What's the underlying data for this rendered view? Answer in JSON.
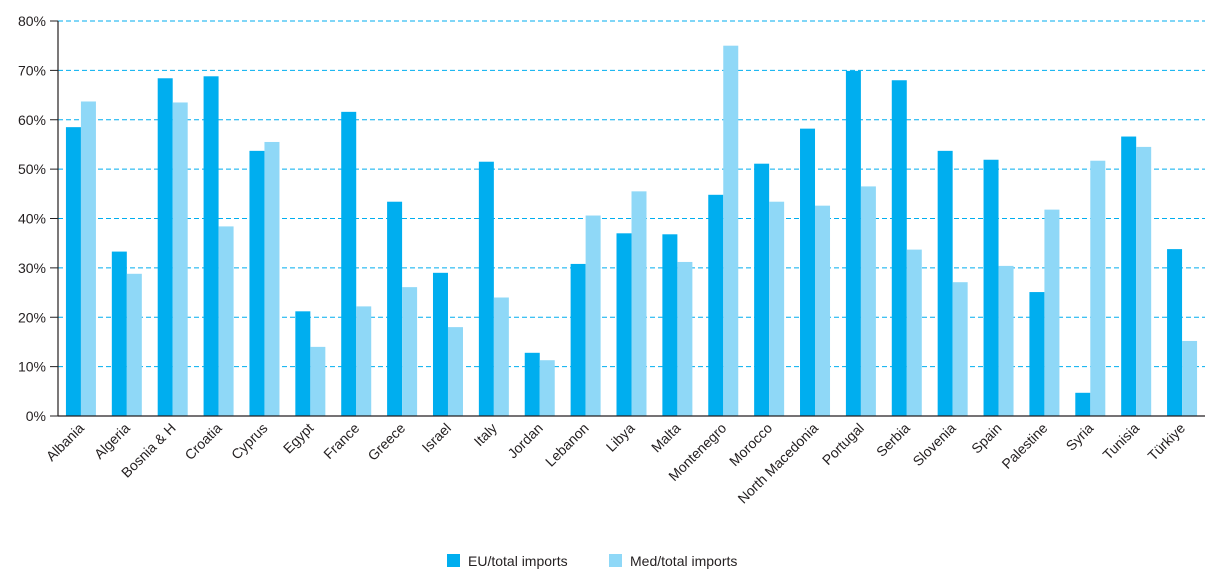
{
  "chart_data": {
    "type": "bar",
    "title": "",
    "xlabel": "",
    "ylabel": "",
    "ylim": [
      0,
      80
    ],
    "y_tick_values": [
      0,
      10,
      20,
      30,
      40,
      50,
      60,
      70,
      80
    ],
    "y_tick_labels": [
      "0%",
      "10%",
      "20%",
      "30%",
      "40%",
      "50%",
      "60%",
      "70%",
      "80%"
    ],
    "grid": true,
    "legend_position": "bottom-center",
    "categories": [
      "Albania",
      "Algeria",
      "Bosnia & H",
      "Croatia",
      "Cyprus",
      "Egypt",
      "France",
      "Greece",
      "Israel",
      "Italy",
      "Jordan",
      "Lebanon",
      "Libya",
      "Malta",
      "Montenegro",
      "Morocco",
      "North Macedonia",
      "Portugal",
      "Serbia",
      "Slovenia",
      "Spain",
      "Palestine",
      "Syria",
      "Tunisia",
      "Türkiye"
    ],
    "series": [
      {
        "name": "EU/total imports",
        "color": "#00aeef",
        "values": [
          58.5,
          33.3,
          68.4,
          68.8,
          53.7,
          21.2,
          61.6,
          43.4,
          29.0,
          51.5,
          12.8,
          30.8,
          37.0,
          36.8,
          44.8,
          51.1,
          58.2,
          69.9,
          68.0,
          53.7,
          51.9,
          25.1,
          4.7,
          56.6,
          33.8
        ]
      },
      {
        "name": "Med/total imports",
        "color": "#8fd8f7",
        "values": [
          63.7,
          28.8,
          63.5,
          38.4,
          55.5,
          14.0,
          22.2,
          26.1,
          18.0,
          24.0,
          11.3,
          40.6,
          45.5,
          31.2,
          75.0,
          43.4,
          42.6,
          46.5,
          33.7,
          27.1,
          30.4,
          41.8,
          51.7,
          54.5,
          15.2
        ]
      }
    ],
    "grid_color": "#00aeef",
    "axis_color": "#231f20"
  }
}
